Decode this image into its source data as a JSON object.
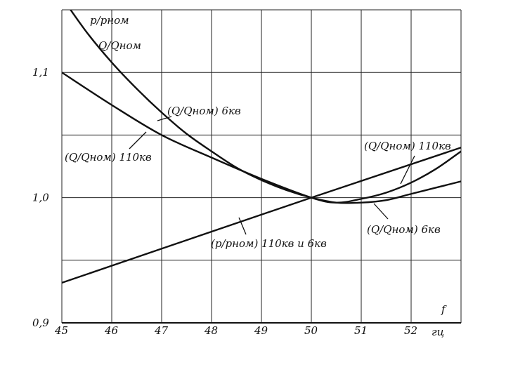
{
  "chart_data": {
    "type": "line",
    "x_ticks": [
      "45",
      "46",
      "47",
      "48",
      "49",
      "50",
      "51",
      "52"
    ],
    "x_unit_label": "гц",
    "x_symbol": "f",
    "y_ticks": [
      "0,9",
      "1,0",
      "1,1"
    ],
    "xlim": [
      45,
      53
    ],
    "ylim": [
      0.9,
      1.15
    ],
    "grid": true,
    "y_axis_label_line1": "p/pном",
    "y_axis_label_line2": "Q/Qном",
    "series": [
      {
        "name": "(p/pном) 110кв и 6кв",
        "x": [
          45,
          50,
          53
        ],
        "y": [
          0.932,
          1.0,
          1.04
        ]
      },
      {
        "name": "(Q/Qном) 110кв",
        "x": [
          45,
          46,
          47,
          48,
          49,
          50,
          50.5,
          51,
          51.5,
          52,
          52.5,
          53
        ],
        "y": [
          1.1,
          1.074,
          1.05,
          1.032,
          1.015,
          1.0,
          0.996,
          0.999,
          1.004,
          1.012,
          1.023,
          1.037
        ]
      },
      {
        "name": "(Q/Qном) 6кв",
        "x": [
          45,
          45.5,
          46,
          46.5,
          47,
          47.5,
          48,
          48.5,
          49,
          49.5,
          50,
          50.5,
          51,
          51.5,
          52,
          52.5,
          53
        ],
        "y": [
          1.16,
          1.132,
          1.108,
          1.087,
          1.068,
          1.051,
          1.037,
          1.024,
          1.014,
          1.006,
          1.0,
          0.996,
          0.996,
          0.998,
          1.003,
          1.008,
          1.013
        ]
      }
    ],
    "annotations": [
      "(Q/Qном) 6кв",
      "(Q/Qном) 110кв",
      "(Q/Qном) 110кв",
      "(p/pном) 110кв и 6кв",
      "(Q/Qном) 6кв"
    ]
  }
}
